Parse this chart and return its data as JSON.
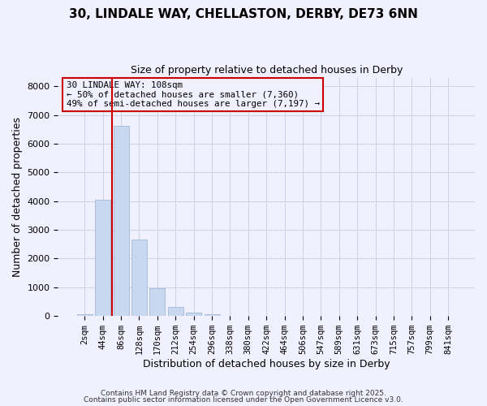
{
  "title_line1": "30, LINDALE WAY, CHELLASTON, DERBY, DE73 6NN",
  "title_line2": "Size of property relative to detached houses in Derby",
  "xlabel": "Distribution of detached houses by size in Derby",
  "ylabel": "Number of detached properties",
  "bar_labels": [
    "2sqm",
    "44sqm",
    "86sqm",
    "128sqm",
    "170sqm",
    "212sqm",
    "254sqm",
    "296sqm",
    "338sqm",
    "380sqm",
    "422sqm",
    "464sqm",
    "506sqm",
    "547sqm",
    "589sqm",
    "631sqm",
    "673sqm",
    "715sqm",
    "757sqm",
    "799sqm",
    "841sqm"
  ],
  "bar_values": [
    50,
    4050,
    6620,
    2650,
    970,
    330,
    130,
    50,
    0,
    0,
    0,
    0,
    0,
    0,
    0,
    0,
    0,
    0,
    0,
    0,
    0
  ],
  "bar_color": "#c8d8ee",
  "bar_edgecolor": "#a0b8d8",
  "vline_x": 1.5,
  "vline_color": "#cc0000",
  "ylim": [
    0,
    8300
  ],
  "yticks": [
    0,
    1000,
    2000,
    3000,
    4000,
    5000,
    6000,
    7000,
    8000
  ],
  "annotation_title": "30 LINDALE WAY: 108sqm",
  "annotation_line1": "← 50% of detached houses are smaller (7,360)",
  "annotation_line2": "49% of semi-detached houses are larger (7,197) →",
  "footer1": "Contains HM Land Registry data © Crown copyright and database right 2025.",
  "footer2": "Contains public sector information licensed under the Open Government Licence v3.0.",
  "background_color": "#f0f0ff",
  "grid_color": "#d0d0e8"
}
